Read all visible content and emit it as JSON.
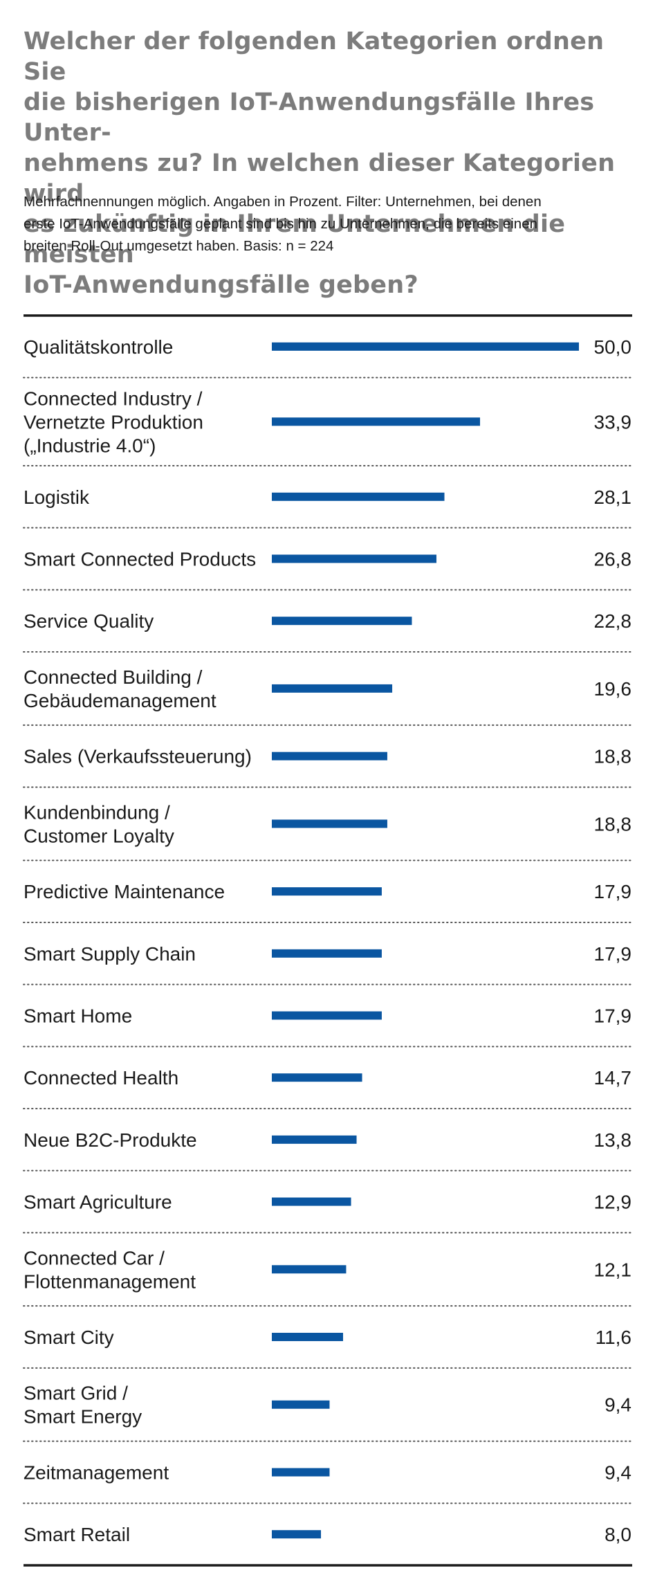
{
  "title": "Welcher der folgenden Kategorien ordnen Sie die bisherigen IoT-Anwendungsfälle Ihres Unter-nehmens zu? In welchen dieser Kategorien wird es zukünftig in Ihrem Unternehmen die meisten IoT-Anwendungsfälle geben?",
  "title_lines": [
    "Welcher der folgenden Kategorien ordnen Sie",
    "die bisherigen IoT-Anwendungsfälle Ihres Unter-",
    "nehmens zu? In welchen dieser Kategorien wird",
    "es zukünftig in Ihrem Unternehmen die meisten",
    "IoT-Anwendungsfälle geben?"
  ],
  "subtitle": "Mehrfachnennungen  möglich. Angaben in Prozent. Filter: Unternehmen, bei denen erste IoT-Anwendungsfälle geplant sind bis hin zu Unternehmen, die bereits einen breiten Roll-Out umgesetzt haben. Basis: n = 224",
  "subtitle_lines": [
    "Mehrfachnennungen  möglich. Angaben in Prozent. Filter: Unternehmen, bei denen",
    "erste IoT-Anwendungsfälle geplant sind bis hin zu Unternehmen, die bereits einen",
    "breiten Roll-Out umgesetzt haben. Basis: n = 224"
  ],
  "colors": {
    "bar": "#0a56a1",
    "title": "#7c7c7c",
    "text": "#1a1a1a",
    "rule": "#1a1a1a",
    "dots": "#555555"
  },
  "chart_data": {
    "type": "bar",
    "orientation": "horizontal",
    "xlim": [
      0,
      50
    ],
    "grid": false,
    "categories": [
      [
        "Qualitätskontrolle"
      ],
      [
        "Connected Industry /",
        "Vernetzte Produktion",
        "(„Industrie 4.0“)"
      ],
      [
        "Logistik"
      ],
      [
        "Smart Connected Products"
      ],
      [
        "Service Quality"
      ],
      [
        "Connected Building /",
        "Gebäudemanagement"
      ],
      [
        "Sales (Verkaufssteuerung)"
      ],
      [
        "Kundenbindung /",
        "Customer Loyalty"
      ],
      [
        "Predictive Maintenance"
      ],
      [
        "Smart Supply Chain"
      ],
      [
        "Smart Home"
      ],
      [
        "Connected Health"
      ],
      [
        "Neue B2C-Produkte"
      ],
      [
        "Smart Agriculture"
      ],
      [
        "Connected Car /",
        "Flottenmanagement"
      ],
      [
        "Smart City"
      ],
      [
        "Smart Grid /",
        "Smart Energy"
      ],
      [
        "Zeitmanagement"
      ],
      [
        "Smart Retail"
      ]
    ],
    "values": [
      50.0,
      33.9,
      28.1,
      26.8,
      22.8,
      19.6,
      18.8,
      18.8,
      17.9,
      17.9,
      17.9,
      14.7,
      13.8,
      12.9,
      12.1,
      11.6,
      9.4,
      9.4,
      8.0
    ],
    "value_labels": [
      "50,0",
      "33,9",
      "28,1",
      "26,8",
      "22,8",
      "19,6",
      "18,8",
      "18,8",
      "17,9",
      "17,9",
      "17,9",
      "14,7",
      "13,8",
      "12,9",
      "12,1",
      "11,6",
      "9,4",
      "9,4",
      "8,0"
    ]
  }
}
